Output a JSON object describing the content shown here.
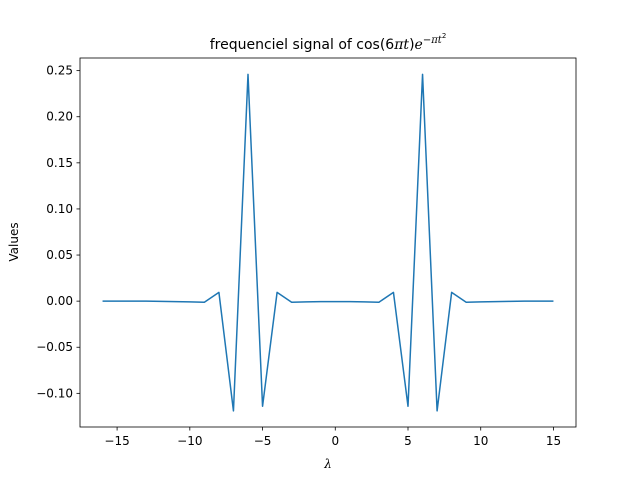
{
  "chart_data": {
    "type": "line",
    "title": {
      "prefix": "frequenciel signal of cos(6",
      "pi": "π",
      "t": "t",
      "close": ")",
      "e": "e",
      "exp_minus": "−",
      "exp_pi": "π",
      "exp_t": "t",
      "exp_sq": "2"
    },
    "xlabel": "λ",
    "ylabel": "Values",
    "xlim": [
      -17.55,
      16.55
    ],
    "ylim": [
      -0.1365,
      0.2637
    ],
    "xticks": [
      {
        "value": -15,
        "label": "−15"
      },
      {
        "value": -10,
        "label": "−10"
      },
      {
        "value": -5,
        "label": "−5"
      },
      {
        "value": 0,
        "label": "0"
      },
      {
        "value": 5,
        "label": "5"
      },
      {
        "value": 10,
        "label": "10"
      },
      {
        "value": 15,
        "label": "15"
      }
    ],
    "yticks": [
      {
        "value": -0.1,
        "label": "−0.10"
      },
      {
        "value": -0.05,
        "label": "−0.05"
      },
      {
        "value": 0.0,
        "label": "0.00"
      },
      {
        "value": 0.05,
        "label": "0.05"
      },
      {
        "value": 0.1,
        "label": "0.10"
      },
      {
        "value": 0.15,
        "label": "0.15"
      },
      {
        "value": 0.2,
        "label": "0.20"
      },
      {
        "value": 0.25,
        "label": "0.25"
      }
    ],
    "grid": false,
    "legend": "none",
    "series": [
      {
        "color": "#1f77b4",
        "x": [
          -16,
          -15,
          -14,
          -13,
          -12,
          -11,
          -10,
          -9,
          -8,
          -7,
          -6,
          -5,
          -4,
          -3,
          -2,
          -1,
          0,
          1,
          2,
          3,
          4,
          5,
          6,
          7,
          8,
          9,
          10,
          11,
          12,
          13,
          14,
          15
        ],
        "y": [
          0.0,
          0.0,
          0.0,
          0.0,
          -0.0002,
          -0.0005,
          -0.0008,
          -0.0012,
          0.0095,
          -0.119,
          0.246,
          -0.114,
          0.0095,
          -0.0012,
          -0.0008,
          -0.0005,
          -0.0005,
          -0.0005,
          -0.0008,
          -0.0012,
          0.0095,
          -0.114,
          0.246,
          -0.119,
          0.0095,
          -0.0012,
          -0.0008,
          -0.0005,
          -0.0002,
          0.0,
          0.0,
          0.0
        ]
      }
    ]
  }
}
